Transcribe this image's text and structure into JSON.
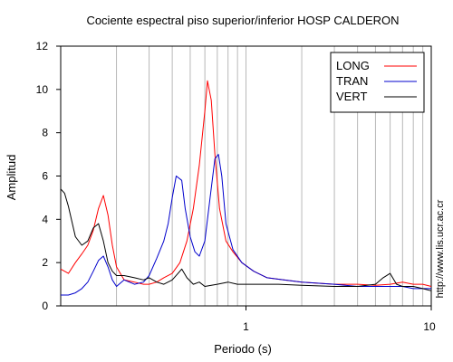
{
  "chart_data": {
    "type": "line",
    "title": "Cociente espectral piso superior/inferior  HOSP CALDERON",
    "xlabel": "Periodo (s)",
    "ylabel": "Amplitud",
    "xscale": "log",
    "xlim": [
      0.1,
      10
    ],
    "ylim": [
      0,
      12
    ],
    "xticks": [
      {
        "value": 1,
        "label": "1"
      },
      {
        "value": 10,
        "label": "10"
      }
    ],
    "yticks": [
      {
        "value": 0,
        "label": "0"
      },
      {
        "value": 2,
        "label": "2"
      },
      {
        "value": 4,
        "label": "4"
      },
      {
        "value": 6,
        "label": "6"
      },
      {
        "value": 8,
        "label": "8"
      },
      {
        "value": 10,
        "label": "10"
      },
      {
        "value": 12,
        "label": "12"
      }
    ],
    "grid": "vertical log grid lines",
    "legend_position": "top-right",
    "watermark": "http://www.lis.ucr.ac.cr",
    "series": [
      {
        "name": "LONG",
        "color": "#ff0000",
        "x": [
          0.1,
          0.11,
          0.12,
          0.13,
          0.14,
          0.15,
          0.16,
          0.17,
          0.18,
          0.19,
          0.2,
          0.22,
          0.25,
          0.28,
          0.3,
          0.33,
          0.36,
          0.4,
          0.44,
          0.48,
          0.52,
          0.56,
          0.6,
          0.62,
          0.65,
          0.68,
          0.72,
          0.78,
          0.85,
          0.95,
          1.1,
          1.3,
          1.6,
          2.0,
          3.0,
          4.0,
          5.0,
          6.0,
          7.0,
          8.0,
          9.0,
          10.0
        ],
        "y": [
          1.7,
          1.5,
          2.0,
          2.4,
          2.8,
          3.5,
          4.5,
          5.1,
          4.2,
          2.8,
          1.8,
          1.2,
          1.1,
          1.0,
          1.0,
          1.1,
          1.3,
          1.5,
          2.0,
          3.0,
          4.5,
          6.5,
          9.0,
          10.4,
          9.5,
          7.0,
          4.5,
          3.0,
          2.5,
          2.0,
          1.6,
          1.3,
          1.2,
          1.1,
          1.0,
          1.0,
          0.95,
          1.0,
          1.1,
          1.0,
          1.0,
          0.9
        ]
      },
      {
        "name": "TRAN",
        "color": "#0000cc",
        "x": [
          0.1,
          0.11,
          0.12,
          0.13,
          0.14,
          0.15,
          0.16,
          0.17,
          0.18,
          0.19,
          0.2,
          0.22,
          0.25,
          0.28,
          0.3,
          0.33,
          0.36,
          0.38,
          0.4,
          0.42,
          0.45,
          0.47,
          0.5,
          0.53,
          0.56,
          0.6,
          0.64,
          0.68,
          0.71,
          0.74,
          0.78,
          0.85,
          0.95,
          1.1,
          1.3,
          1.6,
          2.0,
          3.0,
          4.0,
          5.0,
          6.0,
          7.0,
          8.0,
          9.0,
          10.0
        ],
        "y": [
          0.5,
          0.5,
          0.6,
          0.8,
          1.1,
          1.6,
          2.1,
          2.3,
          1.8,
          1.2,
          0.9,
          1.2,
          1.0,
          1.1,
          1.4,
          2.2,
          3.0,
          3.8,
          5.0,
          6.0,
          5.8,
          4.5,
          3.2,
          2.5,
          2.3,
          3.0,
          5.0,
          6.8,
          7.0,
          6.0,
          3.8,
          2.6,
          2.0,
          1.6,
          1.3,
          1.2,
          1.1,
          1.0,
          0.9,
          0.9,
          0.9,
          0.9,
          0.8,
          0.8,
          0.8
        ]
      },
      {
        "name": "VERT",
        "color": "#000000",
        "x": [
          0.1,
          0.105,
          0.11,
          0.12,
          0.13,
          0.14,
          0.15,
          0.16,
          0.17,
          0.18,
          0.19,
          0.2,
          0.22,
          0.25,
          0.28,
          0.3,
          0.33,
          0.36,
          0.4,
          0.43,
          0.45,
          0.48,
          0.52,
          0.56,
          0.6,
          0.7,
          0.8,
          0.9,
          1.0,
          1.2,
          1.5,
          2.0,
          3.0,
          4.0,
          5.0,
          5.5,
          6.0,
          6.5,
          7.0,
          8.0,
          9.0,
          10.0
        ],
        "y": [
          5.4,
          5.2,
          4.6,
          3.2,
          2.8,
          3.0,
          3.6,
          3.8,
          3.0,
          2.0,
          1.6,
          1.4,
          1.4,
          1.3,
          1.2,
          1.3,
          1.1,
          1.0,
          1.2,
          1.5,
          1.7,
          1.3,
          1.0,
          1.1,
          0.9,
          1.0,
          1.1,
          1.0,
          1.0,
          1.0,
          1.0,
          0.95,
          0.9,
          0.9,
          1.0,
          1.3,
          1.5,
          1.0,
          0.9,
          0.9,
          0.8,
          0.7
        ]
      }
    ]
  }
}
